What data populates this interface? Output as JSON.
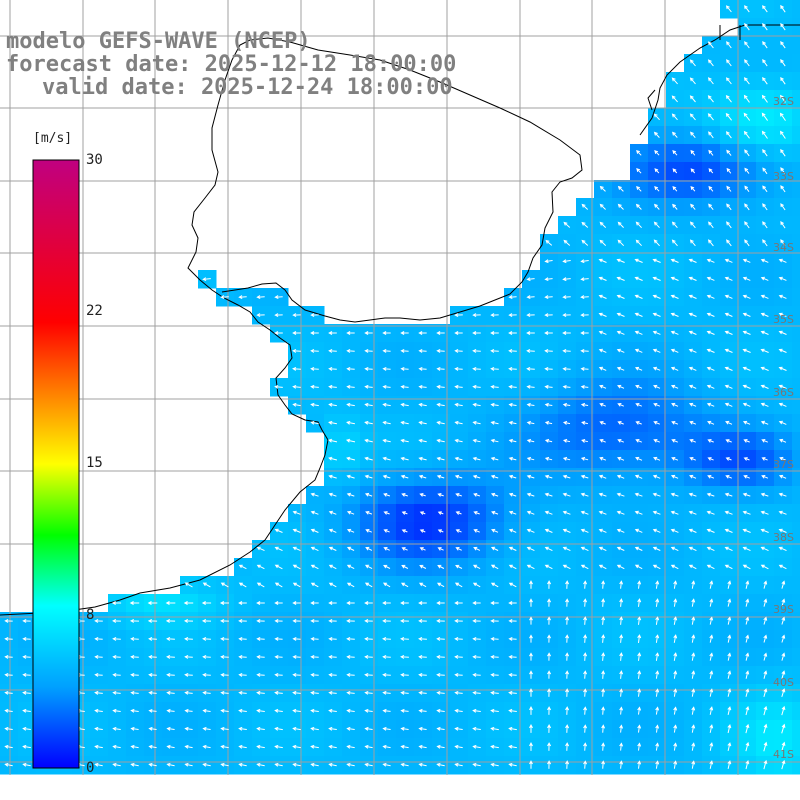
{
  "title": {
    "line1": "modelo GEFS-WAVE (NCEP)",
    "line2": "forecast date: 2025-12-12 18:00:00",
    "line3": "valid date: 2025-12-24 18:00:00"
  },
  "colorbar": {
    "unit": "[m/s]",
    "ticks": [
      "30",
      "22",
      "15",
      "8",
      "0"
    ],
    "min": 0,
    "max": 30,
    "colors": [
      "#0000ff",
      "#00a0ff",
      "#00ffff",
      "#00ff00",
      "#ffff00",
      "#ff8000",
      "#ff0000",
      "#c00080"
    ]
  },
  "lat_labels": [
    "32S",
    "33S",
    "34S",
    "35S",
    "36S",
    "37S",
    "38S",
    "39S",
    "40S",
    "41S"
  ],
  "map_style": {
    "land_color": "#ffffff",
    "grid_color": "#a0a0a0",
    "coast_color": "#000000",
    "arrow_color": "#ffffff"
  }
}
